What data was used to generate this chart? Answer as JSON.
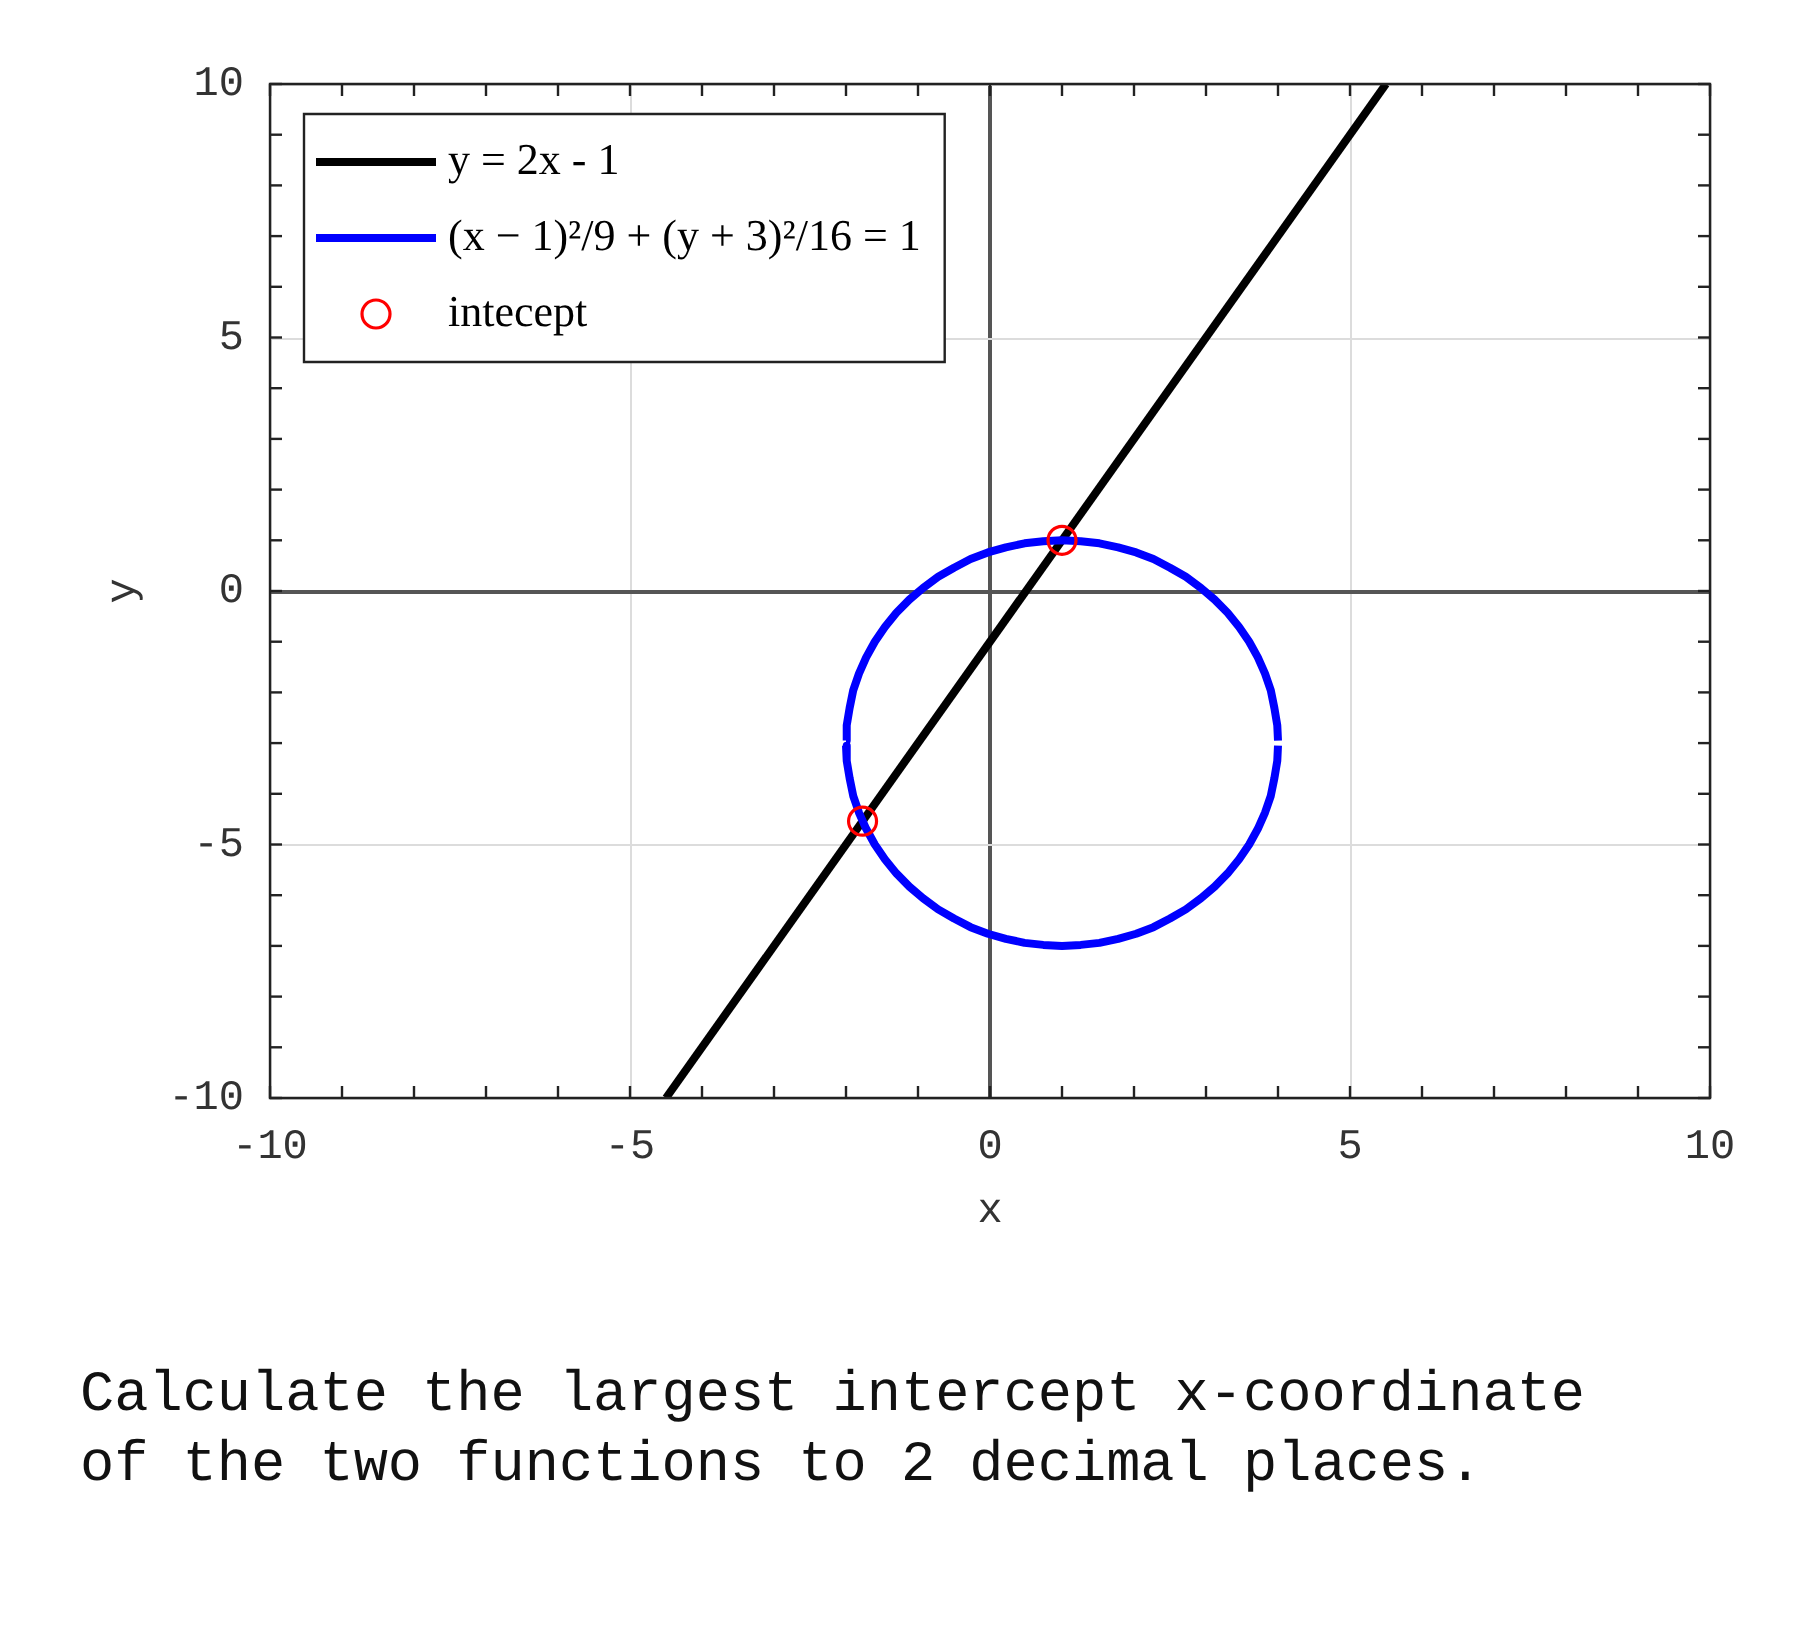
{
  "chart_data": {
    "type": "line",
    "xlabel": "x",
    "ylabel": "y",
    "xlim": [
      -10,
      10
    ],
    "ylim": [
      -10,
      10
    ],
    "xticks": [
      -10,
      {
        "value": -9,
        "label": null
      },
      {
        "value": -8,
        "label": null
      },
      {
        "value": -7,
        "label": null
      },
      {
        "value": -6,
        "label": null
      },
      -5,
      {
        "value": -4,
        "label": null
      },
      {
        "value": -3,
        "label": null
      },
      {
        "value": -2,
        "label": null
      },
      {
        "value": -1,
        "label": null
      },
      0,
      {
        "value": 1,
        "label": null
      },
      {
        "value": 2,
        "label": null
      },
      {
        "value": 3,
        "label": null
      },
      {
        "value": 4,
        "label": null
      },
      5,
      {
        "value": 6,
        "label": null
      },
      {
        "value": 7,
        "label": null
      },
      {
        "value": 8,
        "label": null
      },
      {
        "value": 9,
        "label": null
      },
      10
    ],
    "yticks": [
      -10,
      {
        "value": -9,
        "label": null
      },
      {
        "value": -8,
        "label": null
      },
      {
        "value": -7,
        "label": null
      },
      {
        "value": -6,
        "label": null
      },
      -5,
      {
        "value": -4,
        "label": null
      },
      {
        "value": -3,
        "label": null
      },
      {
        "value": -2,
        "label": null
      },
      {
        "value": -1,
        "label": null
      },
      0,
      {
        "value": 1,
        "label": null
      },
      {
        "value": 2,
        "label": null
      },
      {
        "value": 3,
        "label": null
      },
      {
        "value": 4,
        "label": null
      },
      5,
      {
        "value": 6,
        "label": null
      },
      {
        "value": 7,
        "label": null
      },
      {
        "value": 8,
        "label": null
      },
      {
        "value": 9,
        "label": null
      },
      10
    ],
    "grid": true,
    "legend": "top left",
    "series": [
      {
        "name": "y = 2x - 1",
        "type": "line",
        "color": "#000000",
        "marker": "none",
        "x": [
          -4.5,
          5.5
        ],
        "values": [
          -10,
          10
        ]
      },
      {
        "name": "(x − 1)²/9 + (y + 3)²/16 = 1",
        "type": "line",
        "color": "#0000ff",
        "marker": "none",
        "x": [
          -2,
          -1.99,
          -1.95,
          -1.9,
          -1.82,
          -1.72,
          -1.6,
          -1.46,
          -1.3,
          -1.12,
          -0.93,
          -0.72,
          -0.5,
          -0.27,
          -0.03,
          0.22,
          0.48,
          0.74,
          1,
          1.26,
          1.52,
          1.78,
          2.03,
          2.27,
          2.5,
          2.72,
          2.93,
          3.12,
          3.3,
          3.46,
          3.6,
          3.72,
          3.82,
          3.9,
          3.95,
          3.99,
          4
        ],
        "values": [
          -2.95,
          -2.65,
          -2.31,
          -1.96,
          -1.63,
          -1.31,
          -1,
          -0.71,
          -0.43,
          -0.17,
          0.06,
          0.28,
          0.46,
          0.63,
          0.76,
          0.86,
          0.94,
          0.98,
          1,
          0.98,
          0.94,
          0.86,
          0.76,
          0.63,
          0.46,
          0.28,
          0.06,
          -0.17,
          -0.43,
          -0.71,
          -1,
          -1.31,
          -1.63,
          -1.96,
          -2.31,
          -2.65,
          -2.95
        ]
      },
      {
        "color": "#0000ff",
        "marker": "none",
        "x": [
          -2,
          -1.99,
          -1.95,
          -1.9,
          -1.82,
          -1.72,
          -1.6,
          -1.46,
          -1.3,
          -1.12,
          -0.93,
          -0.72,
          -0.5,
          -0.27,
          -0.03,
          0.22,
          0.48,
          0.74,
          1,
          1.26,
          1.52,
          1.78,
          2.03,
          2.27,
          2.5,
          2.72,
          2.93,
          3.12,
          3.3,
          3.46,
          3.6,
          3.72,
          3.82,
          3.9,
          3.95,
          3.99,
          4
        ],
        "values": [
          -3.05,
          -3.35,
          -3.69,
          -4.04,
          -4.37,
          -4.69,
          -5,
          -5.29,
          -5.57,
          -5.83,
          -6.06,
          -6.28,
          -6.46,
          -6.63,
          -6.76,
          -6.86,
          -6.94,
          -6.98,
          -7,
          -6.98,
          -6.94,
          -6.86,
          -6.76,
          -6.63,
          -6.46,
          -6.28,
          -6.06,
          -5.83,
          -5.57,
          -5.29,
          -5,
          -4.69,
          -4.37,
          -4.04,
          -3.69,
          -3.35,
          -3.05
        ]
      },
      {
        "name": "intecept",
        "type": "scatter",
        "color": "#ff0000",
        "marker": "circle",
        "x": [
          1,
          -1.77
        ],
        "values": [
          1,
          -4.54
        ]
      }
    ],
    "annotations": [
      "Calculate the largest intercept x-coordinate of the two functions to 2 decimal places."
    ]
  }
}
